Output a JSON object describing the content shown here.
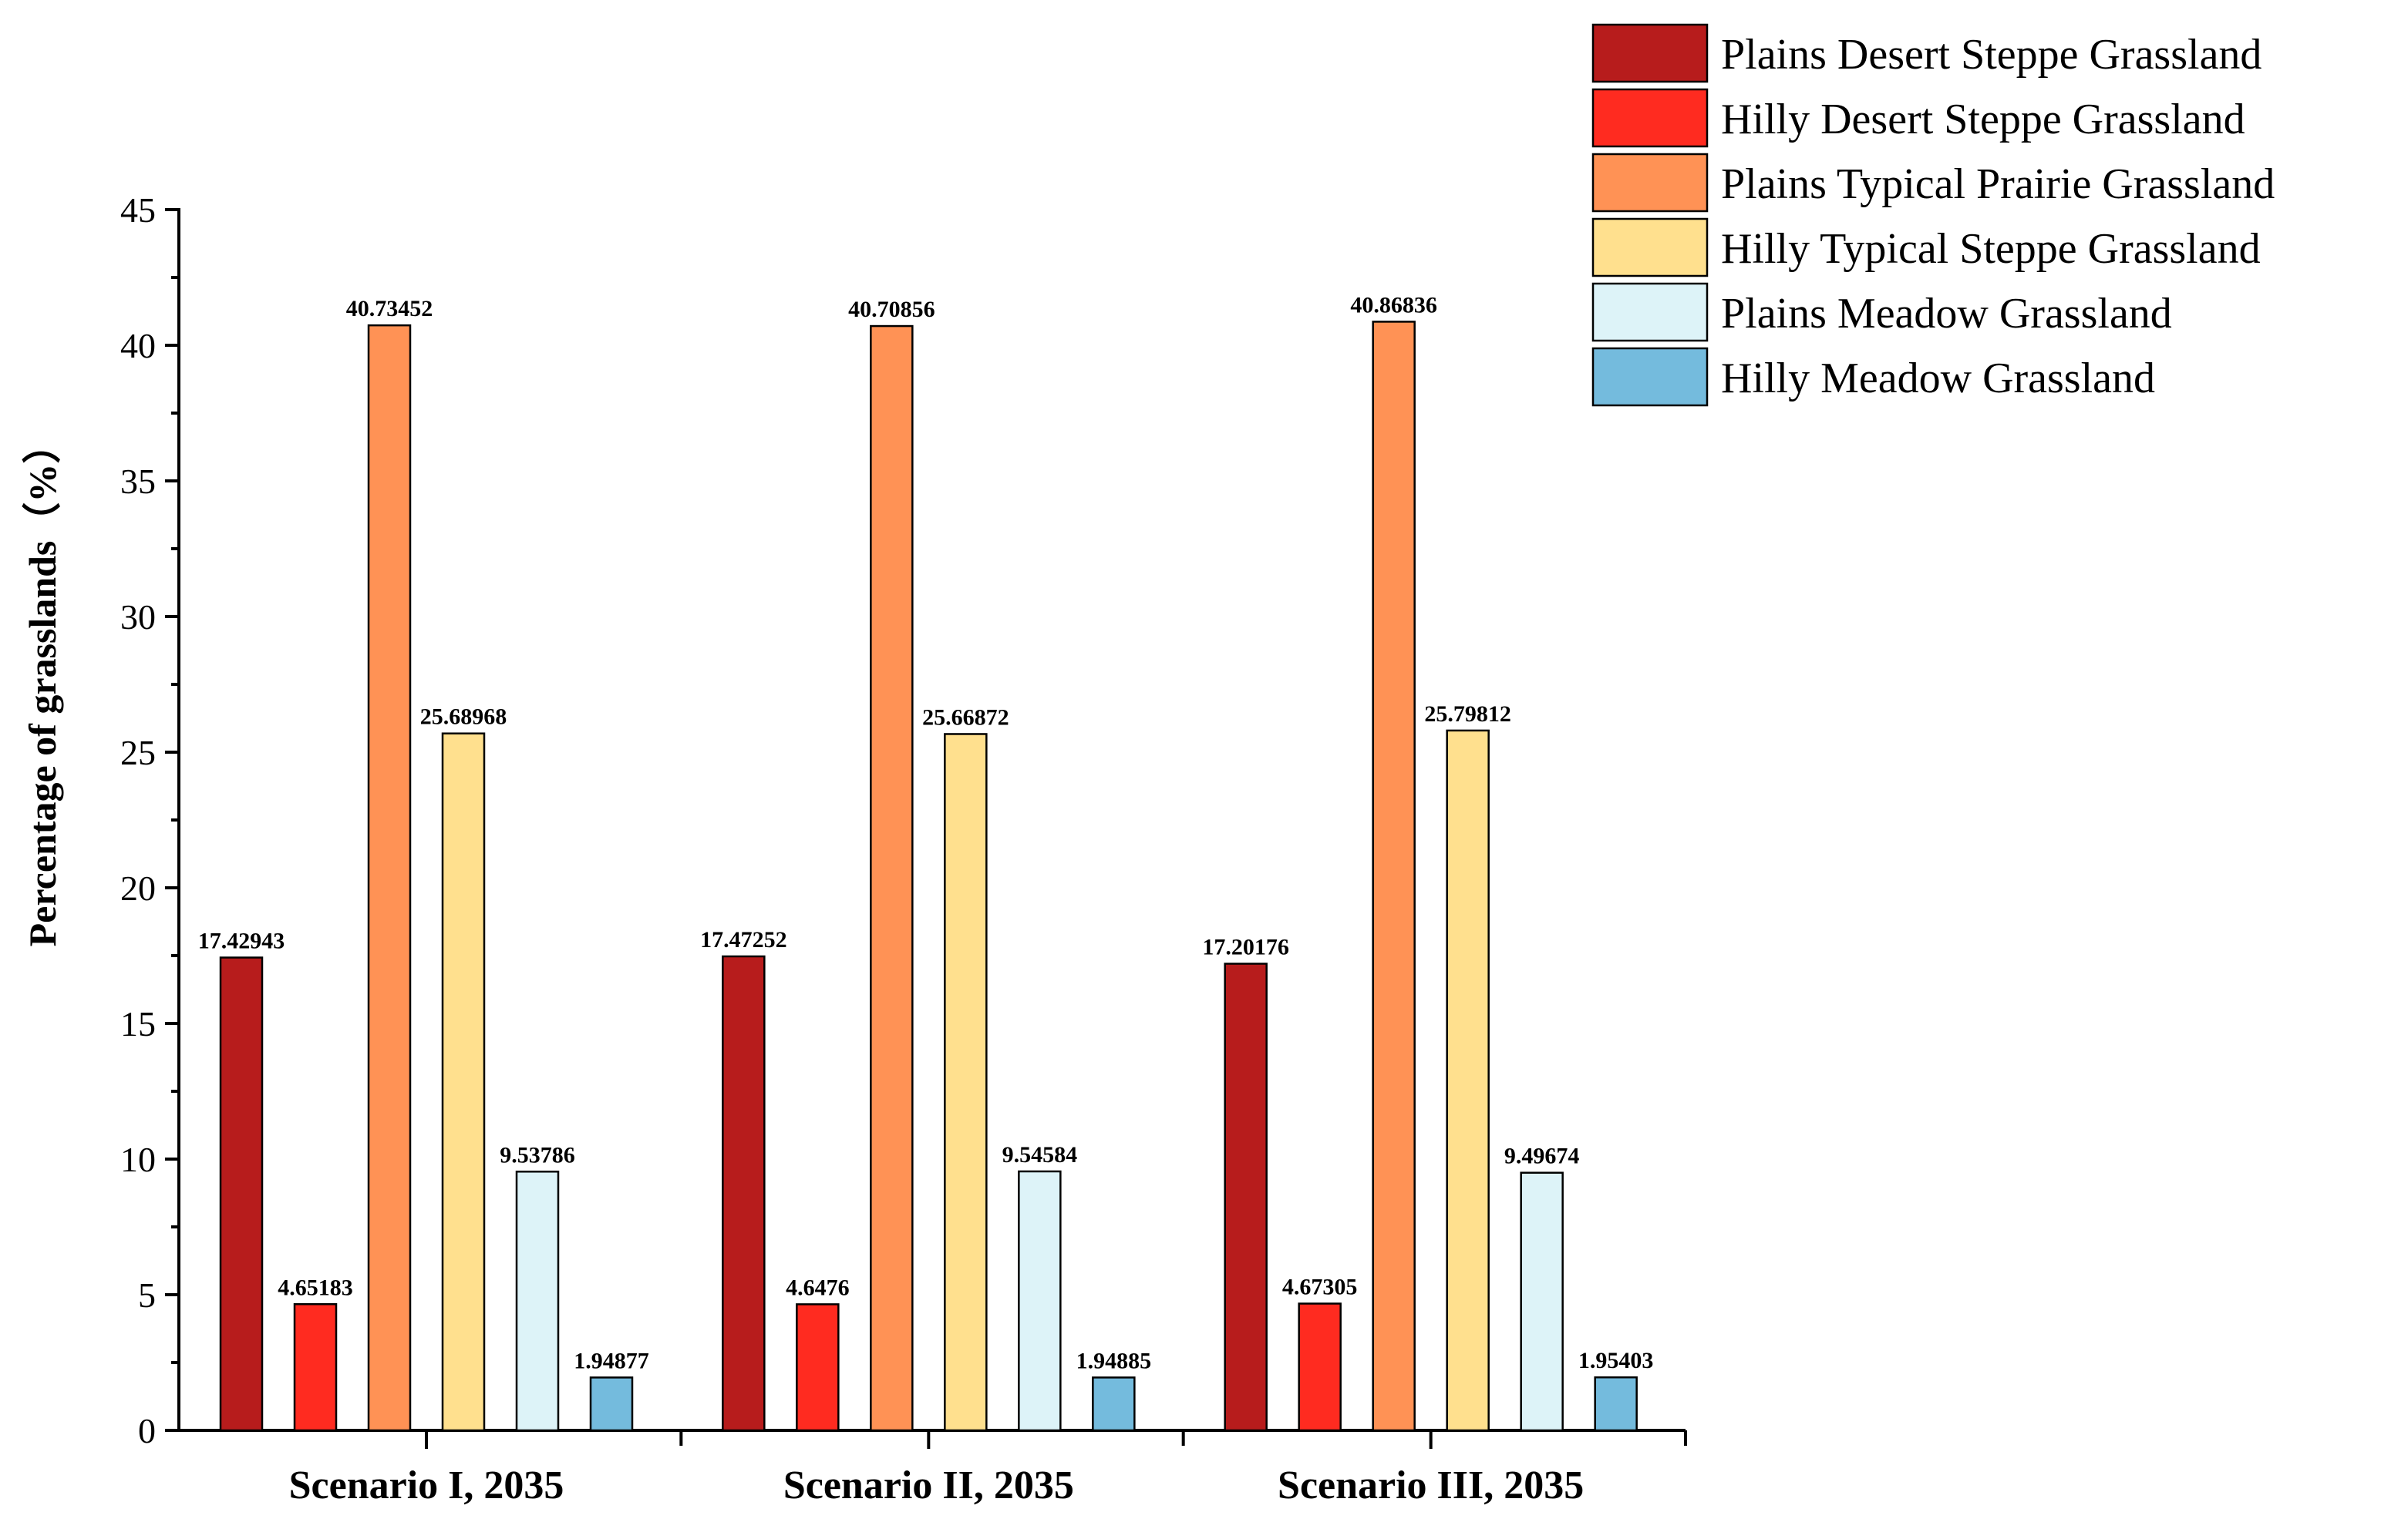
{
  "chart_data": {
    "type": "bar",
    "title": "",
    "xlabel": "",
    "ylabel": "Percentage of grasslands（%）",
    "ylim": [
      0,
      45
    ],
    "yticks": [
      0,
      5,
      10,
      15,
      20,
      25,
      30,
      35,
      40,
      45
    ],
    "grid": false,
    "legend_position": "top-right",
    "categories": [
      "Scenario I, 2035",
      "Scenario II, 2035",
      "Scenario III, 2035"
    ],
    "series": [
      {
        "name": "Plains Desert Steppe Grassland",
        "color": "#B71C1C",
        "values": [
          17.42943,
          17.47252,
          17.20176
        ],
        "labels": [
          "17.42943",
          "17.47252",
          "17.20176"
        ]
      },
      {
        "name": "Hilly Desert Steppe Grassland",
        "color": "#FF2B20",
        "values": [
          4.65183,
          4.6476,
          4.67305
        ],
        "labels": [
          "4.65183",
          "4.6476",
          "4.67305"
        ]
      },
      {
        "name": "Plains Typical Prairie Grassland",
        "color": "#FF9255",
        "values": [
          40.73452,
          40.70856,
          40.86836
        ],
        "labels": [
          "40.73452",
          "40.70856",
          "40.86836"
        ]
      },
      {
        "name": "Hilly Typical Steppe Grassland",
        "color": "#FFE08E",
        "values": [
          25.68968,
          25.66872,
          25.79812
        ],
        "labels": [
          "25.68968",
          "25.66872",
          "25.79812"
        ]
      },
      {
        "name": "Plains Meadow Grassland",
        "color": "#DDF3F8",
        "values": [
          9.53786,
          9.54584,
          9.49674
        ],
        "labels": [
          "9.53786",
          "9.54584",
          "9.49674"
        ]
      },
      {
        "name": "Hilly Meadow Grassland",
        "color": "#74BBDD",
        "values": [
          1.94877,
          1.94885,
          1.95403
        ],
        "labels": [
          "1.94877",
          "1.94885",
          "1.95403"
        ]
      }
    ]
  }
}
